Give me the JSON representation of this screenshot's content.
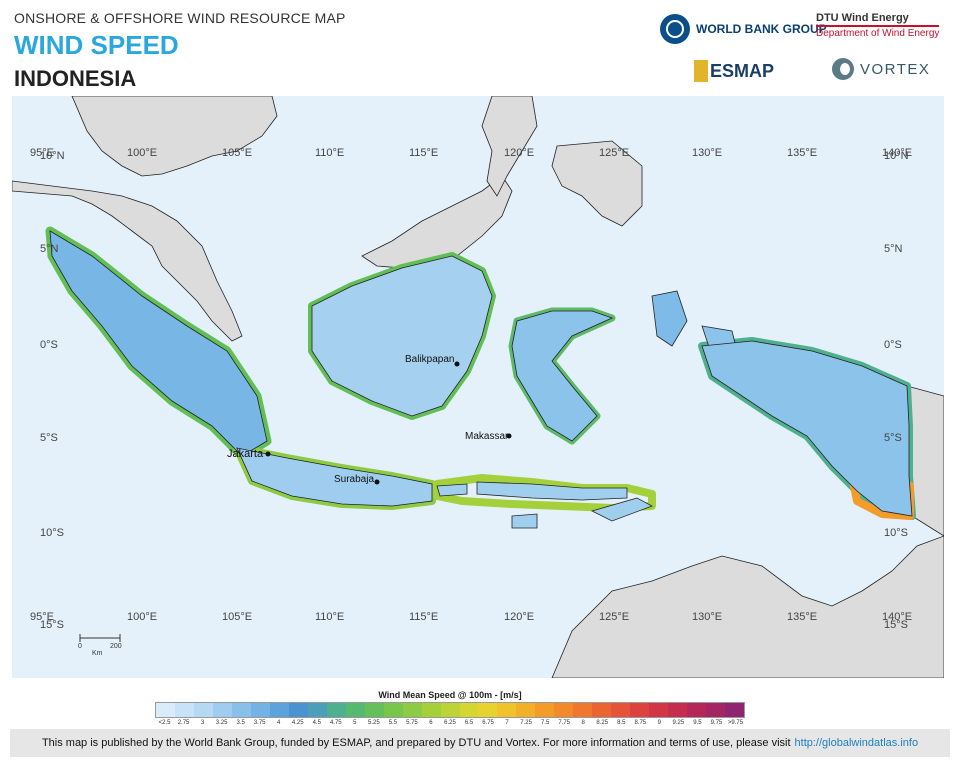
{
  "header": {
    "subtitle": "ONSHORE & OFFSHORE WIND RESOURCE MAP",
    "title": "WIND SPEED",
    "country": "INDONESIA"
  },
  "logos": {
    "world_bank": "WORLD BANK GROUP",
    "dtu_line1": "DTU Wind Energy",
    "dtu_line2": "Department of Wind Energy",
    "esmap": "ESMAP",
    "vortex": "VORTEX"
  },
  "map": {
    "lon_labels": [
      "95°E",
      "100°E",
      "105°E",
      "110°E",
      "115°E",
      "120°E",
      "125°E",
      "130°E",
      "135°E",
      "140°E"
    ],
    "lat_labels": [
      "10°N",
      "5°N",
      "0°S",
      "5°S",
      "10°S",
      "15°S"
    ],
    "cities": {
      "balikpapan": "Balikpapan",
      "makassar": "Makassar",
      "jakarta": "Jakarta",
      "surabaja": "Surabaja"
    },
    "scale": {
      "zero": "0",
      "max": "200",
      "unit": "Km"
    },
    "colors": {
      "sea": "#e4f1fb",
      "land": "#e3e3e3",
      "neighbor_land": "#dcdcdc"
    }
  },
  "legend": {
    "title": "Wind Mean Speed @ 100m - [m/s]",
    "ticks": [
      "<2.5",
      "2.75",
      "3",
      "3.25",
      "3.5",
      "3.75",
      "4",
      "4.25",
      "4.5",
      "4.75",
      "5",
      "5.25",
      "5.5",
      "5.75",
      "6",
      "6.25",
      "6.5",
      "6.75",
      "7",
      "7.25",
      "7.5",
      "7.75",
      "8",
      "8.25",
      "8.5",
      "8.75",
      "9",
      "9.25",
      "9.5",
      "9.75",
      ">9.75"
    ],
    "colors": [
      "#d9ecfa",
      "#c8e3f7",
      "#b5d9f3",
      "#9fcdef",
      "#89c0ea",
      "#72b2e4",
      "#5ca3dd",
      "#4b92d2",
      "#4c9fb9",
      "#4fb08f",
      "#55b96f",
      "#64c05a",
      "#78c64c",
      "#8ccb43",
      "#a4d03c",
      "#bcd436",
      "#d4d632",
      "#e8d22e",
      "#f0c22c",
      "#f2af2a",
      "#f39c2a",
      "#f28a2c",
      "#ef772f",
      "#eb6533",
      "#e55338",
      "#dd433e",
      "#d23645",
      "#c42d4e",
      "#b42758",
      "#a32563",
      "#912470"
    ]
  },
  "footer": {
    "text": "This  map is published by the World Bank Group, funded by ESMAP, and prepared by DTU and Vortex. For more information and terms of use, please visit",
    "link": "http://globalwindatlas.info"
  }
}
